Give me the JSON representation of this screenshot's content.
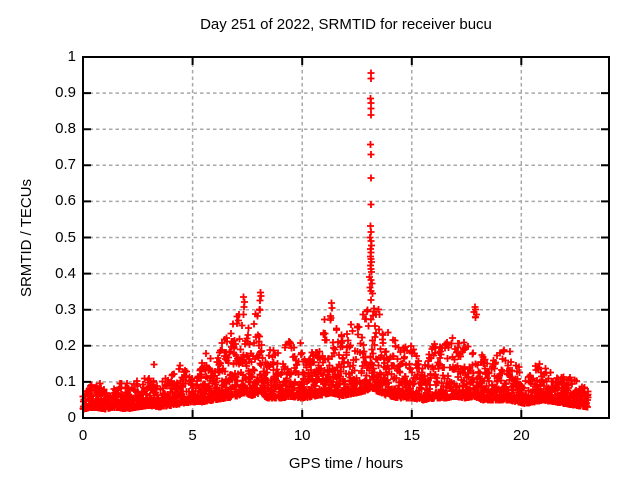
{
  "chart_data": {
    "type": "scatter",
    "title": "Day 251 of 2022, SRMTID for receiver bucu",
    "xlabel": "GPS time / hours",
    "ylabel": "SRMTID / TECUs",
    "xlim": [
      0,
      24
    ],
    "ylim": [
      0,
      1
    ],
    "xticks": {
      "values": [
        0,
        5,
        10,
        15,
        20
      ],
      "labels": [
        "0",
        "5",
        "10",
        "15",
        "20"
      ]
    },
    "yticks": {
      "values": [
        0,
        0.1,
        0.2,
        0.3,
        0.4,
        0.5,
        0.6,
        0.7,
        0.8,
        0.9,
        1
      ],
      "labels": [
        "0",
        "0.1",
        "0.2",
        "0.3",
        "0.4",
        "0.5",
        "0.6",
        "0.7",
        "0.8",
        "0.9",
        "1"
      ]
    },
    "grid": true,
    "legend": "none",
    "marker": {
      "symbol": "plus",
      "color": "#ff0000",
      "size": 7
    },
    "time_range_hours": [
      0,
      23.05
    ],
    "sample_step_hours": 0.0083333,
    "noise_seed": 251,
    "skew": 2.5,
    "band_envelope": [
      [
        0.0,
        0.025,
        0.1
      ],
      [
        0.5,
        0.03,
        0.1
      ],
      [
        1.0,
        0.025,
        0.095
      ],
      [
        1.5,
        0.03,
        0.1
      ],
      [
        2.0,
        0.025,
        0.1
      ],
      [
        2.5,
        0.03,
        0.11
      ],
      [
        3.0,
        0.035,
        0.13
      ],
      [
        3.5,
        0.03,
        0.11
      ],
      [
        4.0,
        0.035,
        0.13
      ],
      [
        4.5,
        0.04,
        0.15
      ],
      [
        5.0,
        0.045,
        0.14
      ],
      [
        5.5,
        0.045,
        0.17
      ],
      [
        6.0,
        0.05,
        0.18
      ],
      [
        6.5,
        0.055,
        0.24
      ],
      [
        7.0,
        0.06,
        0.29
      ],
      [
        7.4,
        0.07,
        0.335
      ],
      [
        7.7,
        0.06,
        0.26
      ],
      [
        8.1,
        0.07,
        0.35
      ],
      [
        8.4,
        0.055,
        0.24
      ],
      [
        9.0,
        0.055,
        0.21
      ],
      [
        9.5,
        0.06,
        0.23
      ],
      [
        10.0,
        0.055,
        0.21
      ],
      [
        10.5,
        0.06,
        0.24
      ],
      [
        11.0,
        0.065,
        0.28
      ],
      [
        11.35,
        0.07,
        0.32
      ],
      [
        11.7,
        0.06,
        0.23
      ],
      [
        12.1,
        0.065,
        0.27
      ],
      [
        12.5,
        0.07,
        0.28
      ],
      [
        12.9,
        0.075,
        0.38
      ],
      [
        13.15,
        0.085,
        0.46
      ],
      [
        13.4,
        0.075,
        0.34
      ],
      [
        13.7,
        0.065,
        0.28
      ],
      [
        14.0,
        0.06,
        0.25
      ],
      [
        14.5,
        0.055,
        0.24
      ],
      [
        15.0,
        0.055,
        0.21
      ],
      [
        15.5,
        0.05,
        0.19
      ],
      [
        16.0,
        0.055,
        0.21
      ],
      [
        16.5,
        0.055,
        0.23
      ],
      [
        17.0,
        0.06,
        0.25
      ],
      [
        17.4,
        0.055,
        0.22
      ],
      [
        17.85,
        0.06,
        0.31
      ],
      [
        18.2,
        0.05,
        0.19
      ],
      [
        18.6,
        0.05,
        0.16
      ],
      [
        19.0,
        0.05,
        0.19
      ],
      [
        19.4,
        0.05,
        0.2
      ],
      [
        19.8,
        0.045,
        0.15
      ],
      [
        20.2,
        0.04,
        0.14
      ],
      [
        20.6,
        0.045,
        0.17
      ],
      [
        21.0,
        0.05,
        0.15
      ],
      [
        21.5,
        0.045,
        0.14
      ],
      [
        22.0,
        0.04,
        0.12
      ],
      [
        22.5,
        0.035,
        0.11
      ],
      [
        23.05,
        0.03,
        0.1
      ]
    ],
    "outliers": [
      [
        13.13,
        0.955
      ],
      [
        13.135,
        0.94
      ],
      [
        13.12,
        0.885
      ],
      [
        13.14,
        0.872
      ],
      [
        13.13,
        0.858
      ],
      [
        13.14,
        0.84
      ],
      [
        13.12,
        0.757
      ],
      [
        13.135,
        0.73
      ],
      [
        13.13,
        0.665
      ],
      [
        13.14,
        0.592
      ],
      [
        13.12,
        0.532
      ],
      [
        13.15,
        0.515
      ],
      [
        13.1,
        0.5
      ],
      [
        13.14,
        0.49
      ],
      [
        13.16,
        0.478
      ],
      [
        13.12,
        0.468
      ],
      [
        13.13,
        0.458
      ],
      [
        13.11,
        0.447
      ],
      [
        13.15,
        0.44
      ],
      [
        13.17,
        0.432
      ],
      [
        13.12,
        0.422
      ],
      [
        13.14,
        0.413
      ],
      [
        13.16,
        0.405
      ],
      [
        13.08,
        0.39
      ],
      [
        13.13,
        0.382
      ],
      [
        13.18,
        0.372
      ],
      [
        13.1,
        0.362
      ],
      [
        13.15,
        0.352
      ],
      [
        13.2,
        0.345
      ],
      [
        7.32,
        0.335
      ],
      [
        7.38,
        0.322
      ],
      [
        7.35,
        0.308
      ],
      [
        8.1,
        0.348
      ],
      [
        8.13,
        0.338
      ],
      [
        8.08,
        0.325
      ],
      [
        11.33,
        0.318
      ],
      [
        11.37,
        0.305
      ],
      [
        17.88,
        0.307
      ],
      [
        17.92,
        0.3
      ],
      [
        17.85,
        0.293
      ],
      [
        17.95,
        0.287
      ],
      [
        17.9,
        0.28
      ],
      [
        5.62,
        0.178
      ],
      [
        3.25,
        0.148
      ]
    ]
  },
  "frame": {
    "background": "#ffffff",
    "border_color": "#000000",
    "grid_color": "#a8a8a8",
    "text_color": "#000000"
  }
}
